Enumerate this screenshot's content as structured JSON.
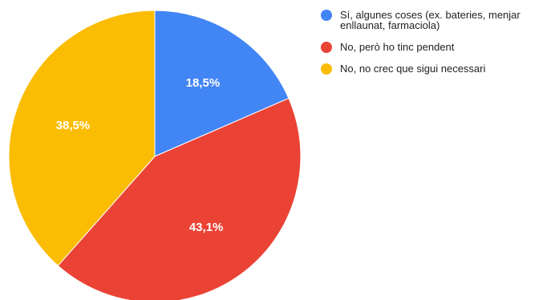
{
  "chart_data": {
    "type": "pie",
    "title": "",
    "start_angle_deg": 0,
    "direction": "clockwise",
    "slices": [
      {
        "label": "Sí, algunes coses (ex. bateries, menjar enllaunat, farmaciola)",
        "value": 18.5,
        "display": "18,5%",
        "color": "#4285f4"
      },
      {
        "label": "No, però ho tinc pendent",
        "value": 43.1,
        "display": "43,1%",
        "color": "#ea4335"
      },
      {
        "label": "No, no crec que sigui necessari",
        "value": 38.5,
        "display": "38,5%",
        "color": "#fbbc04"
      }
    ],
    "legend_position": "right"
  }
}
